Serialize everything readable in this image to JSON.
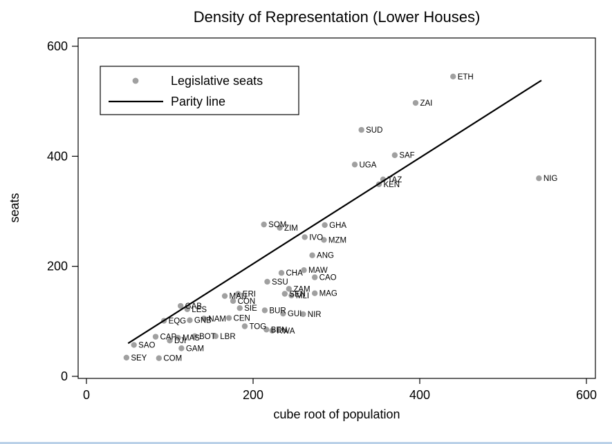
{
  "chart_data": {
    "type": "scatter",
    "title": "Density of Representation (Lower Houses)",
    "xlabel": "cube root of population",
    "ylabel": "seats",
    "xlim": [
      0,
      600
    ],
    "ylim": [
      0,
      600
    ],
    "xticks": [
      0,
      200,
      400,
      600
    ],
    "yticks": [
      0,
      200,
      400,
      600
    ],
    "grid": false,
    "legend": {
      "position": "upper-left",
      "items": [
        {
          "label": "Legislative seats",
          "type": "marker"
        },
        {
          "label": "Parity line",
          "type": "line"
        }
      ]
    },
    "marker_color": "#a0a0a0",
    "parity_color": "#000000",
    "bottom_edge_color": "#b9d0e8",
    "parity_line": {
      "x1": 50,
      "y1": 60,
      "x2": 546,
      "y2": 538
    },
    "points": [
      {
        "label": "SEY",
        "x": 48,
        "y": 34
      },
      {
        "label": "SAO",
        "x": 57,
        "y": 57
      },
      {
        "label": "COM",
        "x": 87,
        "y": 33
      },
      {
        "label": "CAP",
        "x": 83,
        "y": 72
      },
      {
        "label": "DJI",
        "x": 100,
        "y": 65
      },
      {
        "label": "MAS",
        "x": 110,
        "y": 70
      },
      {
        "label": "BOT",
        "x": 130,
        "y": 73
      },
      {
        "label": "GAM",
        "x": 114,
        "y": 51
      },
      {
        "label": "LBR",
        "x": 155,
        "y": 73
      },
      {
        "label": "TOG",
        "x": 190,
        "y": 91
      },
      {
        "label": "BEN",
        "x": 216,
        "y": 85
      },
      {
        "label": "RWA",
        "x": 223,
        "y": 83
      },
      {
        "label": "EQG",
        "x": 93,
        "y": 101
      },
      {
        "label": "GNB",
        "x": 124,
        "y": 102
      },
      {
        "label": "NAM",
        "x": 141,
        "y": 105
      },
      {
        "label": "CEN",
        "x": 171,
        "y": 106
      },
      {
        "label": "GAB",
        "x": 113,
        "y": 128
      },
      {
        "label": "LES",
        "x": 121,
        "y": 122
      },
      {
        "label": "BUR",
        "x": 214,
        "y": 120
      },
      {
        "label": "GUI",
        "x": 236,
        "y": 114
      },
      {
        "label": "NIR",
        "x": 260,
        "y": 113
      },
      {
        "label": "SIE",
        "x": 184,
        "y": 124
      },
      {
        "label": "CON",
        "x": 176,
        "y": 137
      },
      {
        "label": "MAU",
        "x": 166,
        "y": 146
      },
      {
        "label": "ERI",
        "x": 182,
        "y": 150
      },
      {
        "label": "SEN",
        "x": 238,
        "y": 150
      },
      {
        "label": "MLI",
        "x": 246,
        "y": 147
      },
      {
        "label": "MAG",
        "x": 274,
        "y": 151
      },
      {
        "label": "ZAM",
        "x": 243,
        "y": 159
      },
      {
        "label": "SSU",
        "x": 217,
        "y": 172
      },
      {
        "label": "CAO",
        "x": 274,
        "y": 180
      },
      {
        "label": "CHA",
        "x": 234,
        "y": 188
      },
      {
        "label": "MAW",
        "x": 261,
        "y": 193
      },
      {
        "label": "ANG",
        "x": 271,
        "y": 220
      },
      {
        "label": "MZM",
        "x": 285,
        "y": 248
      },
      {
        "label": "IVO",
        "x": 262,
        "y": 253
      },
      {
        "label": "ZIM",
        "x": 232,
        "y": 270
      },
      {
        "label": "SOM",
        "x": 213,
        "y": 276
      },
      {
        "label": "GHA",
        "x": 286,
        "y": 275
      },
      {
        "label": "KEN",
        "x": 351,
        "y": 349
      },
      {
        "label": "TAZ",
        "x": 356,
        "y": 358
      },
      {
        "label": "NIG",
        "x": 543,
        "y": 360
      },
      {
        "label": "UGA",
        "x": 322,
        "y": 385
      },
      {
        "label": "SAF",
        "x": 370,
        "y": 402
      },
      {
        "label": "SUD",
        "x": 330,
        "y": 448
      },
      {
        "label": "ZAI",
        "x": 395,
        "y": 497
      },
      {
        "label": "ETH",
        "x": 440,
        "y": 545
      }
    ]
  }
}
